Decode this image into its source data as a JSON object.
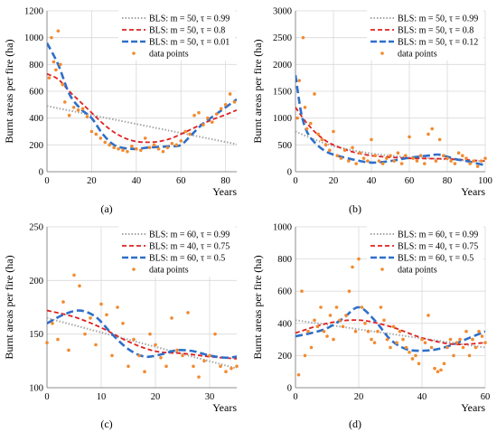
{
  "chart_data": [
    {
      "id": "a",
      "type": "scatter",
      "caption": "(a)",
      "xlabel": "Years",
      "ylabel": "Burnt areas per fire (ha)",
      "xlim": [
        0,
        85
      ],
      "ylim": [
        0,
        1200
      ],
      "xticks": [
        0,
        20,
        40,
        60,
        80
      ],
      "yticks": [
        0,
        200,
        400,
        600,
        800,
        1000,
        1200
      ],
      "grid": true,
      "legend_position": "top-right",
      "series": [
        {
          "name": "BLS: m = 50, τ = 0.99",
          "kind": "line",
          "style": "dotted",
          "color": "#a6a6a6",
          "x": [
            0,
            85
          ],
          "y": [
            490,
            205
          ]
        },
        {
          "name": "BLS: m = 50, τ = 0.8",
          "kind": "line",
          "style": "dashed",
          "color": "#e02020",
          "x": [
            0,
            5,
            10,
            15,
            20,
            25,
            30,
            35,
            40,
            45,
            50,
            55,
            60,
            65,
            70,
            75,
            80,
            85
          ],
          "y": [
            730,
            690,
            600,
            520,
            440,
            360,
            295,
            250,
            225,
            220,
            225,
            245,
            280,
            320,
            360,
            395,
            425,
            460
          ]
        },
        {
          "name": "BLS: m = 50, τ = 0.01",
          "kind": "line",
          "style": "dashed",
          "color": "#2e6fc9",
          "x": [
            0,
            5,
            10,
            15,
            20,
            25,
            30,
            35,
            40,
            45,
            50,
            55,
            60,
            65,
            70,
            75,
            80,
            85
          ],
          "y": [
            960,
            800,
            580,
            470,
            400,
            280,
            200,
            175,
            170,
            180,
            185,
            190,
            200,
            280,
            360,
            420,
            480,
            540
          ]
        },
        {
          "name": "data points",
          "kind": "scatter",
          "color": "#f28a2e",
          "x": [
            1,
            2,
            3,
            4,
            5,
            6,
            7,
            8,
            10,
            12,
            14,
            16,
            18,
            20,
            22,
            24,
            26,
            28,
            30,
            32,
            34,
            36,
            38,
            40,
            42,
            44,
            46,
            48,
            50,
            52,
            54,
            56,
            58,
            60,
            62,
            64,
            66,
            68,
            70,
            72,
            74,
            76,
            78,
            80,
            82,
            84
          ],
          "y": [
            700,
            1000,
            820,
            760,
            1050,
            800,
            650,
            520,
            420,
            480,
            460,
            470,
            410,
            300,
            280,
            250,
            220,
            200,
            180,
            170,
            160,
            150,
            190,
            170,
            160,
            250,
            180,
            200,
            170,
            150,
            180,
            210,
            200,
            230,
            300,
            280,
            420,
            440,
            350,
            400,
            370,
            430,
            470,
            500,
            580,
            520
          ]
        }
      ]
    },
    {
      "id": "b",
      "type": "scatter",
      "caption": "(b)",
      "xlabel": "Years",
      "ylabel": "Burnt areas per fire (ha)",
      "xlim": [
        0,
        100
      ],
      "ylim": [
        0,
        3000
      ],
      "xticks": [
        0,
        20,
        40,
        60,
        80,
        100
      ],
      "yticks": [
        0,
        500,
        1000,
        1500,
        2000,
        2500,
        3000
      ],
      "grid": true,
      "legend_position": "top-right",
      "series": [
        {
          "name": "BLS: m = 50, τ = 0.99",
          "kind": "line",
          "style": "dotted",
          "color": "#a6a6a6",
          "x": [
            0,
            10,
            20,
            30,
            40,
            50,
            60,
            70,
            80,
            90,
            100
          ],
          "y": [
            750,
            600,
            480,
            400,
            340,
            300,
            270,
            250,
            230,
            210,
            195
          ]
        },
        {
          "name": "BLS: m = 50, τ = 0.8",
          "kind": "line",
          "style": "dashed",
          "color": "#e02020",
          "x": [
            0,
            5,
            10,
            15,
            20,
            30,
            40,
            50,
            60,
            70,
            80,
            90,
            100
          ],
          "y": [
            1200,
            950,
            750,
            600,
            500,
            370,
            300,
            270,
            250,
            245,
            240,
            220,
            200
          ]
        },
        {
          "name": "BLS: m = 50, τ = 0.12",
          "kind": "line",
          "style": "dashed",
          "color": "#2e6fc9",
          "x": [
            0,
            3,
            6,
            10,
            15,
            20,
            30,
            40,
            50,
            60,
            70,
            75,
            80,
            85,
            90,
            95,
            100
          ],
          "y": [
            1800,
            1100,
            750,
            550,
            400,
            320,
            230,
            170,
            200,
            260,
            300,
            320,
            280,
            230,
            200,
            160,
            120
          ]
        },
        {
          "name": "data points",
          "kind": "scatter",
          "color": "#f28a2e",
          "x": [
            1,
            2,
            4,
            5,
            6,
            8,
            10,
            12,
            14,
            16,
            18,
            20,
            22,
            24,
            26,
            28,
            30,
            32,
            34,
            36,
            38,
            40,
            42,
            44,
            46,
            48,
            50,
            52,
            54,
            56,
            58,
            60,
            62,
            64,
            66,
            68,
            70,
            72,
            74,
            76,
            78,
            80,
            82,
            84,
            86,
            88,
            90,
            92,
            94,
            96,
            98,
            100
          ],
          "y": [
            1000,
            1700,
            2500,
            1200,
            800,
            900,
            1450,
            700,
            600,
            500,
            400,
            750,
            300,
            250,
            400,
            200,
            450,
            150,
            350,
            250,
            200,
            600,
            300,
            200,
            150,
            250,
            300,
            200,
            350,
            150,
            300,
            650,
            250,
            200,
            300,
            150,
            700,
            800,
            200,
            600,
            300,
            250,
            200,
            150,
            350,
            300,
            250,
            150,
            200,
            100,
            200,
            250
          ]
        }
      ]
    },
    {
      "id": "c",
      "type": "scatter",
      "caption": "(c)",
      "xlabel": "Years",
      "ylabel": "Burnt areas per fire (ha)",
      "xlim": [
        0,
        35
      ],
      "ylim": [
        100,
        250
      ],
      "xticks": [
        0,
        10,
        20,
        30
      ],
      "yticks": [
        100,
        150,
        200,
        250
      ],
      "grid": true,
      "legend_position": "top-right",
      "series": [
        {
          "name": "BLS: m = 60, τ = 0.99",
          "kind": "line",
          "style": "dotted",
          "color": "#a6a6a6",
          "x": [
            0,
            35
          ],
          "y": [
            165,
            118
          ]
        },
        {
          "name": "BLS: m = 40, τ = 0.75",
          "kind": "line",
          "style": "dashed",
          "color": "#e02020",
          "x": [
            0,
            5,
            10,
            15,
            20,
            25,
            30,
            35
          ],
          "y": [
            172,
            166,
            156,
            143,
            134,
            132,
            129,
            127
          ]
        },
        {
          "name": "BLS: m = 60, τ = 0.5",
          "kind": "line",
          "style": "dashed",
          "color": "#2e6fc9",
          "x": [
            0,
            3,
            6,
            9,
            12,
            15,
            18,
            21,
            24,
            27,
            30,
            33,
            35
          ],
          "y": [
            160,
            168,
            172,
            166,
            150,
            136,
            129,
            131,
            135,
            134,
            130,
            128,
            129
          ]
        },
        {
          "name": "data points",
          "kind": "scatter",
          "color": "#f28a2e",
          "x": [
            0,
            1,
            2,
            3,
            4,
            5,
            6,
            7,
            8,
            9,
            10,
            11,
            12,
            13,
            14,
            15,
            16,
            17,
            18,
            19,
            20,
            21,
            22,
            23,
            24,
            25,
            26,
            27,
            28,
            29,
            30,
            31,
            32,
            33,
            34,
            35
          ],
          "y": [
            142,
            160,
            145,
            180,
            135,
            205,
            195,
            150,
            165,
            140,
            178,
            168,
            130,
            175,
            160,
            120,
            145,
            130,
            115,
            150,
            140,
            128,
            120,
            165,
            135,
            130,
            170,
            120,
            110,
            125,
            130,
            150,
            120,
            115,
            118,
            120
          ]
        }
      ]
    },
    {
      "id": "d",
      "type": "scatter",
      "caption": "(d)",
      "xlabel": "Years",
      "ylabel": "Burnt areas per fire (ha)",
      "xlim": [
        0,
        60
      ],
      "ylim": [
        0,
        1000
      ],
      "xticks": [
        0,
        20,
        40,
        60
      ],
      "yticks": [
        0,
        200,
        400,
        600,
        800,
        1000
      ],
      "grid": true,
      "legend_position": "top-right",
      "series": [
        {
          "name": "BLS: m = 60, τ = 0.99",
          "kind": "line",
          "style": "dotted",
          "color": "#a6a6a6",
          "x": [
            0,
            60
          ],
          "y": [
            420,
            250
          ]
        },
        {
          "name": "BLS: m = 40, τ = 0.75",
          "kind": "line",
          "style": "dashed",
          "color": "#e02020",
          "x": [
            0,
            10,
            20,
            30,
            40,
            50,
            60
          ],
          "y": [
            340,
            400,
            420,
            380,
            310,
            270,
            280
          ]
        },
        {
          "name": "BLS: m = 60, τ = 0.5",
          "kind": "line",
          "style": "dashed",
          "color": "#2e6fc9",
          "x": [
            0,
            5,
            10,
            15,
            20,
            25,
            30,
            35,
            40,
            45,
            50,
            55,
            60
          ],
          "y": [
            320,
            340,
            370,
            430,
            500,
            420,
            300,
            240,
            230,
            240,
            270,
            310,
            350
          ]
        },
        {
          "name": "data points",
          "kind": "scatter",
          "color": "#f28a2e",
          "x": [
            1,
            2,
            3,
            4,
            5,
            6,
            7,
            8,
            9,
            10,
            11,
            12,
            13,
            14,
            15,
            16,
            17,
            18,
            19,
            20,
            21,
            22,
            23,
            24,
            25,
            26,
            27,
            28,
            29,
            30,
            31,
            32,
            33,
            34,
            35,
            36,
            37,
            38,
            39,
            40,
            41,
            42,
            43,
            44,
            45,
            46,
            47,
            48,
            49,
            50,
            51,
            52,
            53,
            54,
            55,
            56,
            57,
            58,
            59,
            60
          ],
          "y": [
            80,
            600,
            200,
            350,
            250,
            420,
            380,
            500,
            350,
            320,
            450,
            300,
            500,
            420,
            380,
            450,
            600,
            750,
            350,
            800,
            500,
            400,
            350,
            300,
            280,
            350,
            500,
            420,
            300,
            250,
            380,
            280,
            350,
            300,
            250,
            220,
            180,
            200,
            150,
            300,
            280,
            450,
            250,
            120,
            100,
            110,
            150,
            250,
            300,
            200,
            280,
            300,
            250,
            350,
            200,
            300,
            250,
            350,
            320,
            280
          ]
        }
      ]
    }
  ]
}
